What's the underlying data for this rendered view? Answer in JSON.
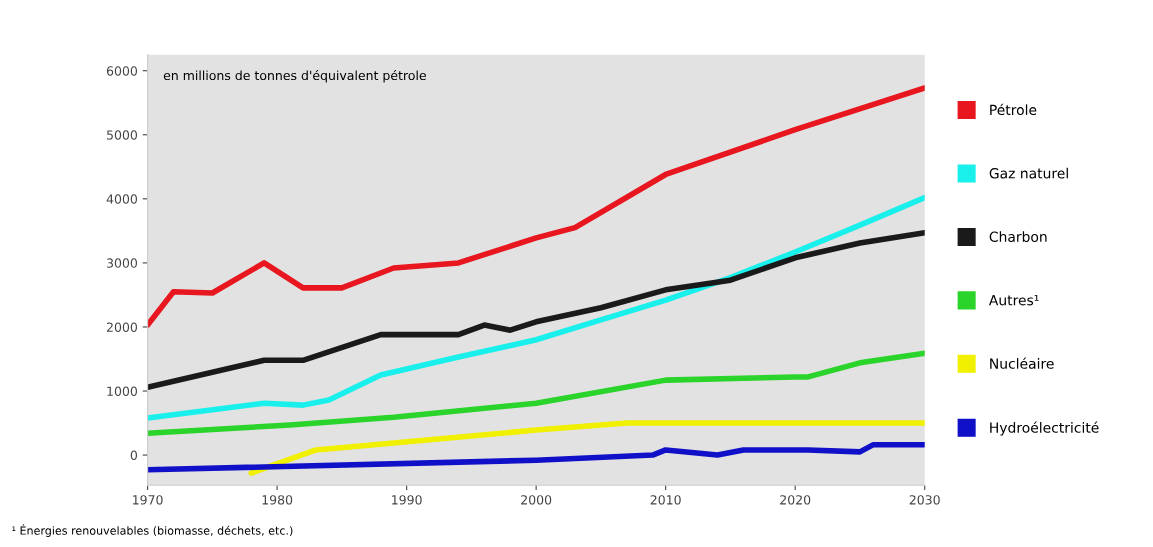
{
  "chart_data": {
    "type": "line",
    "ylabel": "en millions de tonnes d'équivalent pétrole",
    "xlim": [
      1970,
      2030
    ],
    "xticks": [
      1970,
      1980,
      1990,
      2000,
      2010,
      2020,
      2030
    ],
    "ylim": [
      -470,
      6250
    ],
    "yticks": [
      0,
      1000,
      2000,
      3000,
      4000,
      5000,
      6000
    ],
    "grid": false,
    "legend": "right",
    "line_style": "solid",
    "marker": "none",
    "series": [
      {
        "name": "Pétrole",
        "color": "#e8161e",
        "x": [
          1970,
          1972,
          1975,
          1979,
          1982,
          1985,
          1989,
          1994,
          2000,
          2003,
          2010,
          2020,
          2030
        ],
        "values": [
          2030,
          2550,
          2530,
          3000,
          2610,
          2610,
          2920,
          3000,
          3390,
          3550,
          4380,
          5080,
          5730
        ]
      },
      {
        "name": "Gaz naturel",
        "color": "#19f0ec",
        "x": [
          1970,
          1979,
          1982,
          1984,
          1988,
          1994,
          2000,
          2005,
          2010,
          2015,
          2020,
          2025,
          2030
        ],
        "values": [
          580,
          810,
          780,
          860,
          1250,
          1530,
          1800,
          2110,
          2420,
          2770,
          3170,
          3590,
          4020
        ]
      },
      {
        "name": "Charbon",
        "color": "#1a1a1a",
        "x": [
          1970,
          1979,
          1982,
          1988,
          1994,
          1996,
          1998,
          2000,
          2005,
          2010,
          2015,
          2020,
          2025,
          2030
        ],
        "values": [
          1060,
          1480,
          1480,
          1880,
          1880,
          2030,
          1950,
          2080,
          2300,
          2580,
          2730,
          3080,
          3310,
          3470
        ]
      },
      {
        "name": "Autres¹",
        "color": "#2bd42b",
        "x": [
          1970,
          1981,
          1989,
          2000,
          2010,
          2020,
          2021,
          2025,
          2030
        ],
        "values": [
          340,
          470,
          590,
          810,
          1170,
          1220,
          1220,
          1440,
          1590
        ]
      },
      {
        "name": "Nucléaire",
        "color": "#f0f000",
        "x": [
          1978,
          1983,
          1989,
          2000,
          2007,
          2030
        ],
        "values": [
          -280,
          80,
          190,
          390,
          500,
          500
        ]
      },
      {
        "name": "Hydroélectricité",
        "color": "#1010c8",
        "x": [
          1970,
          2000,
          2009,
          2010,
          2014,
          2016,
          2021,
          2025,
          2026,
          2030
        ],
        "values": [
          -230,
          -80,
          0,
          80,
          0,
          80,
          80,
          50,
          160,
          160
        ]
      }
    ],
    "annotations": [
      "¹ Énergies renouvelables (biomasse, déchets, etc.)"
    ]
  }
}
